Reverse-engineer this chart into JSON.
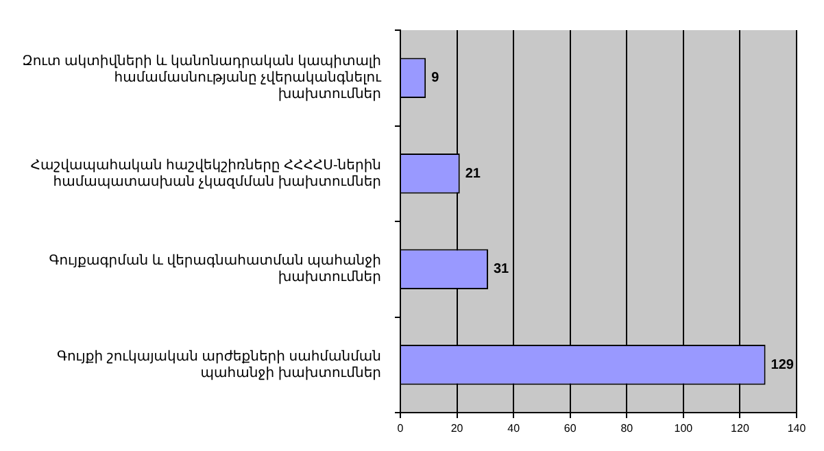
{
  "chart_data": {
    "type": "bar",
    "orientation": "horizontal",
    "categories": [
      "Զուտ ակտիվների և կանոնադրական կապիտալի համամասնությանը չվերականգնելու խախտումներ",
      "Հաշվապահական հաշվեկշիռները ՀՀՀՀՍ-ներին համապատասխան չկազմման խախտումներ",
      "Գույքագրման և վերագնահատման պահանջի խախտումներ",
      "Գույքի շուկայական արժեքների սահմանման պահանջի խախտումներ"
    ],
    "values": [
      9,
      21,
      31,
      129
    ],
    "color": "#9999ff",
    "data_labels": true,
    "xlim": [
      0,
      140
    ],
    "xticks": [
      0,
      20,
      40,
      60,
      80,
      100,
      120,
      140
    ],
    "grid": "x"
  }
}
